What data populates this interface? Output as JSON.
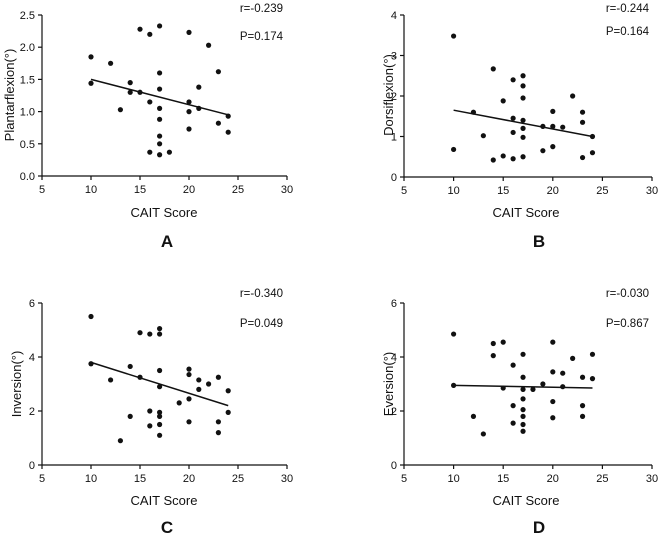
{
  "chart_data": [
    {
      "type": "scatter",
      "panel": "A",
      "xlabel": "CAIT Score",
      "ylabel": "Plantarflexion(°)",
      "xlim": [
        5,
        30
      ],
      "ylim": [
        0,
        2.5
      ],
      "xticks": [
        5,
        10,
        15,
        20,
        25,
        30
      ],
      "yticks": [
        0.0,
        0.5,
        1.0,
        1.5,
        2.0,
        2.5
      ],
      "ytick_labels": [
        "0.0",
        "0.5",
        "1.0",
        "1.5",
        "2.0",
        "2.5"
      ],
      "stat_r": "r=-0.239",
      "stat_p": "P=0.174",
      "fit": {
        "x": [
          10,
          24
        ],
        "y": [
          1.5,
          0.95
        ]
      },
      "points": [
        [
          10,
          1.85
        ],
        [
          10,
          1.44
        ],
        [
          12,
          1.75
        ],
        [
          13,
          1.03
        ],
        [
          14,
          1.45
        ],
        [
          14,
          1.3
        ],
        [
          15,
          2.28
        ],
        [
          15,
          1.3
        ],
        [
          16,
          2.2
        ],
        [
          16,
          1.15
        ],
        [
          16,
          0.37
        ],
        [
          17,
          2.33
        ],
        [
          17,
          1.6
        ],
        [
          17,
          1.35
        ],
        [
          17,
          1.05
        ],
        [
          17,
          0.88
        ],
        [
          17,
          0.62
        ],
        [
          17,
          0.5
        ],
        [
          17,
          0.33
        ],
        [
          18,
          0.37
        ],
        [
          20,
          2.23
        ],
        [
          20,
          1.15
        ],
        [
          20,
          1.0
        ],
        [
          20,
          0.73
        ],
        [
          21,
          1.38
        ],
        [
          21,
          1.05
        ],
        [
          22,
          2.03
        ],
        [
          23,
          1.62
        ],
        [
          23,
          0.82
        ],
        [
          24,
          0.93
        ],
        [
          24,
          0.68
        ]
      ]
    },
    {
      "type": "scatter",
      "panel": "B",
      "xlabel": "CAIT Score",
      "ylabel": "Dorsiflexion(°)",
      "xlim": [
        5,
        30
      ],
      "ylim": [
        0,
        4
      ],
      "xticks": [
        5,
        10,
        15,
        20,
        25,
        30
      ],
      "yticks": [
        0,
        1,
        2,
        3,
        4
      ],
      "ytick_labels": [
        "0",
        "1",
        "2",
        "3",
        "4"
      ],
      "stat_r": "r=-0.244",
      "stat_p": "P=0.164",
      "fit": {
        "x": [
          10,
          24
        ],
        "y": [
          1.65,
          1.0
        ]
      },
      "points": [
        [
          10,
          3.48
        ],
        [
          10,
          0.68
        ],
        [
          12,
          1.6
        ],
        [
          13,
          1.02
        ],
        [
          14,
          2.67
        ],
        [
          14,
          0.42
        ],
        [
          15,
          1.88
        ],
        [
          15,
          0.52
        ],
        [
          16,
          2.4
        ],
        [
          16,
          1.45
        ],
        [
          16,
          1.1
        ],
        [
          16,
          0.45
        ],
        [
          17,
          2.5
        ],
        [
          17,
          2.25
        ],
        [
          17,
          1.95
        ],
        [
          17,
          1.4
        ],
        [
          17,
          1.2
        ],
        [
          17,
          0.98
        ],
        [
          17,
          0.5
        ],
        [
          19,
          1.25
        ],
        [
          19,
          0.65
        ],
        [
          20,
          1.62
        ],
        [
          20,
          1.25
        ],
        [
          20,
          0.75
        ],
        [
          21,
          1.23
        ],
        [
          22,
          2.0
        ],
        [
          23,
          1.6
        ],
        [
          23,
          1.35
        ],
        [
          23,
          0.48
        ],
        [
          24,
          1.0
        ],
        [
          24,
          0.6
        ]
      ]
    },
    {
      "type": "scatter",
      "panel": "C",
      "xlabel": "CAIT Score",
      "ylabel": "Inversion(°)",
      "xlim": [
        5,
        30
      ],
      "ylim": [
        0,
        6
      ],
      "xticks": [
        5,
        10,
        15,
        20,
        25,
        30
      ],
      "yticks": [
        0,
        2,
        4,
        6
      ],
      "ytick_labels": [
        "0",
        "2",
        "4",
        "6"
      ],
      "stat_r": "r=-0.340",
      "stat_p": "P=0.049",
      "fit": {
        "x": [
          10,
          24
        ],
        "y": [
          3.8,
          2.2
        ]
      },
      "points": [
        [
          10,
          5.5
        ],
        [
          10,
          3.75
        ],
        [
          12,
          3.15
        ],
        [
          13,
          0.9
        ],
        [
          14,
          3.65
        ],
        [
          14,
          1.8
        ],
        [
          15,
          4.9
        ],
        [
          15,
          3.25
        ],
        [
          16,
          4.85
        ],
        [
          16,
          2.0
        ],
        [
          16,
          1.45
        ],
        [
          17,
          5.05
        ],
        [
          17,
          4.85
        ],
        [
          17,
          3.5
        ],
        [
          17,
          2.9
        ],
        [
          17,
          1.95
        ],
        [
          17,
          1.8
        ],
        [
          17,
          1.5
        ],
        [
          17,
          1.1
        ],
        [
          19,
          2.3
        ],
        [
          20,
          3.55
        ],
        [
          20,
          3.35
        ],
        [
          20,
          2.45
        ],
        [
          20,
          1.6
        ],
        [
          21,
          3.15
        ],
        [
          21,
          2.8
        ],
        [
          22,
          3.0
        ],
        [
          23,
          3.25
        ],
        [
          23,
          1.6
        ],
        [
          23,
          1.2
        ],
        [
          24,
          2.75
        ],
        [
          24,
          1.95
        ]
      ]
    },
    {
      "type": "scatter",
      "panel": "D",
      "xlabel": "CAIT Score",
      "ylabel": "Eversion(°)",
      "xlim": [
        5,
        30
      ],
      "ylim": [
        0,
        6
      ],
      "xticks": [
        5,
        10,
        15,
        20,
        25,
        30
      ],
      "yticks": [
        0,
        2,
        4,
        6
      ],
      "ytick_labels": [
        "0",
        "2",
        "4",
        "6"
      ],
      "stat_r": "r=-0.030",
      "stat_p": "P=0.867",
      "fit": {
        "x": [
          10,
          24
        ],
        "y": [
          2.95,
          2.85
        ]
      },
      "points": [
        [
          10,
          4.85
        ],
        [
          10,
          2.95
        ],
        [
          12,
          1.8
        ],
        [
          13,
          1.15
        ],
        [
          14,
          4.5
        ],
        [
          14,
          4.05
        ],
        [
          15,
          4.55
        ],
        [
          15,
          2.85
        ],
        [
          16,
          3.7
        ],
        [
          16,
          2.2
        ],
        [
          16,
          1.55
        ],
        [
          17,
          4.1
        ],
        [
          17,
          3.25
        ],
        [
          17,
          2.8
        ],
        [
          17,
          2.45
        ],
        [
          17,
          2.05
        ],
        [
          17,
          1.8
        ],
        [
          17,
          1.5
        ],
        [
          17,
          1.25
        ],
        [
          18,
          2.8
        ],
        [
          19,
          3.0
        ],
        [
          20,
          4.55
        ],
        [
          20,
          3.45
        ],
        [
          20,
          2.35
        ],
        [
          20,
          1.75
        ],
        [
          21,
          3.4
        ],
        [
          21,
          2.9
        ],
        [
          22,
          3.95
        ],
        [
          23,
          3.25
        ],
        [
          23,
          2.2
        ],
        [
          23,
          1.8
        ],
        [
          24,
          4.1
        ],
        [
          24,
          3.2
        ]
      ]
    }
  ]
}
